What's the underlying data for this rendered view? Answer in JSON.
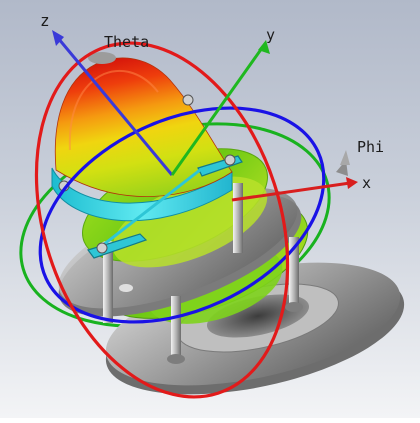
{
  "axes": {
    "z": "z",
    "y": "y",
    "x": "x",
    "theta": "Theta",
    "phi": "Phi"
  },
  "colors": {
    "background_top": "#b4bccb",
    "background_bottom": "#f2f3f5",
    "z_axis": "#3a3ad8",
    "y_axis": "#1fb81f",
    "x_axis": "#d81e1e",
    "theta_ring": "#e21a1a",
    "azimuth_ring": "#1a12e6",
    "elevation_ring": "#19b21f",
    "pattern_peak": "#e3200c",
    "pattern_mid": "#f1d20a",
    "pattern_low": "#8ad018",
    "pattern_band": "#2ed5e0",
    "metal": "#8e8e8e"
  },
  "icons": [
    "theta-cone-icon",
    "phi-cone-icon"
  ]
}
